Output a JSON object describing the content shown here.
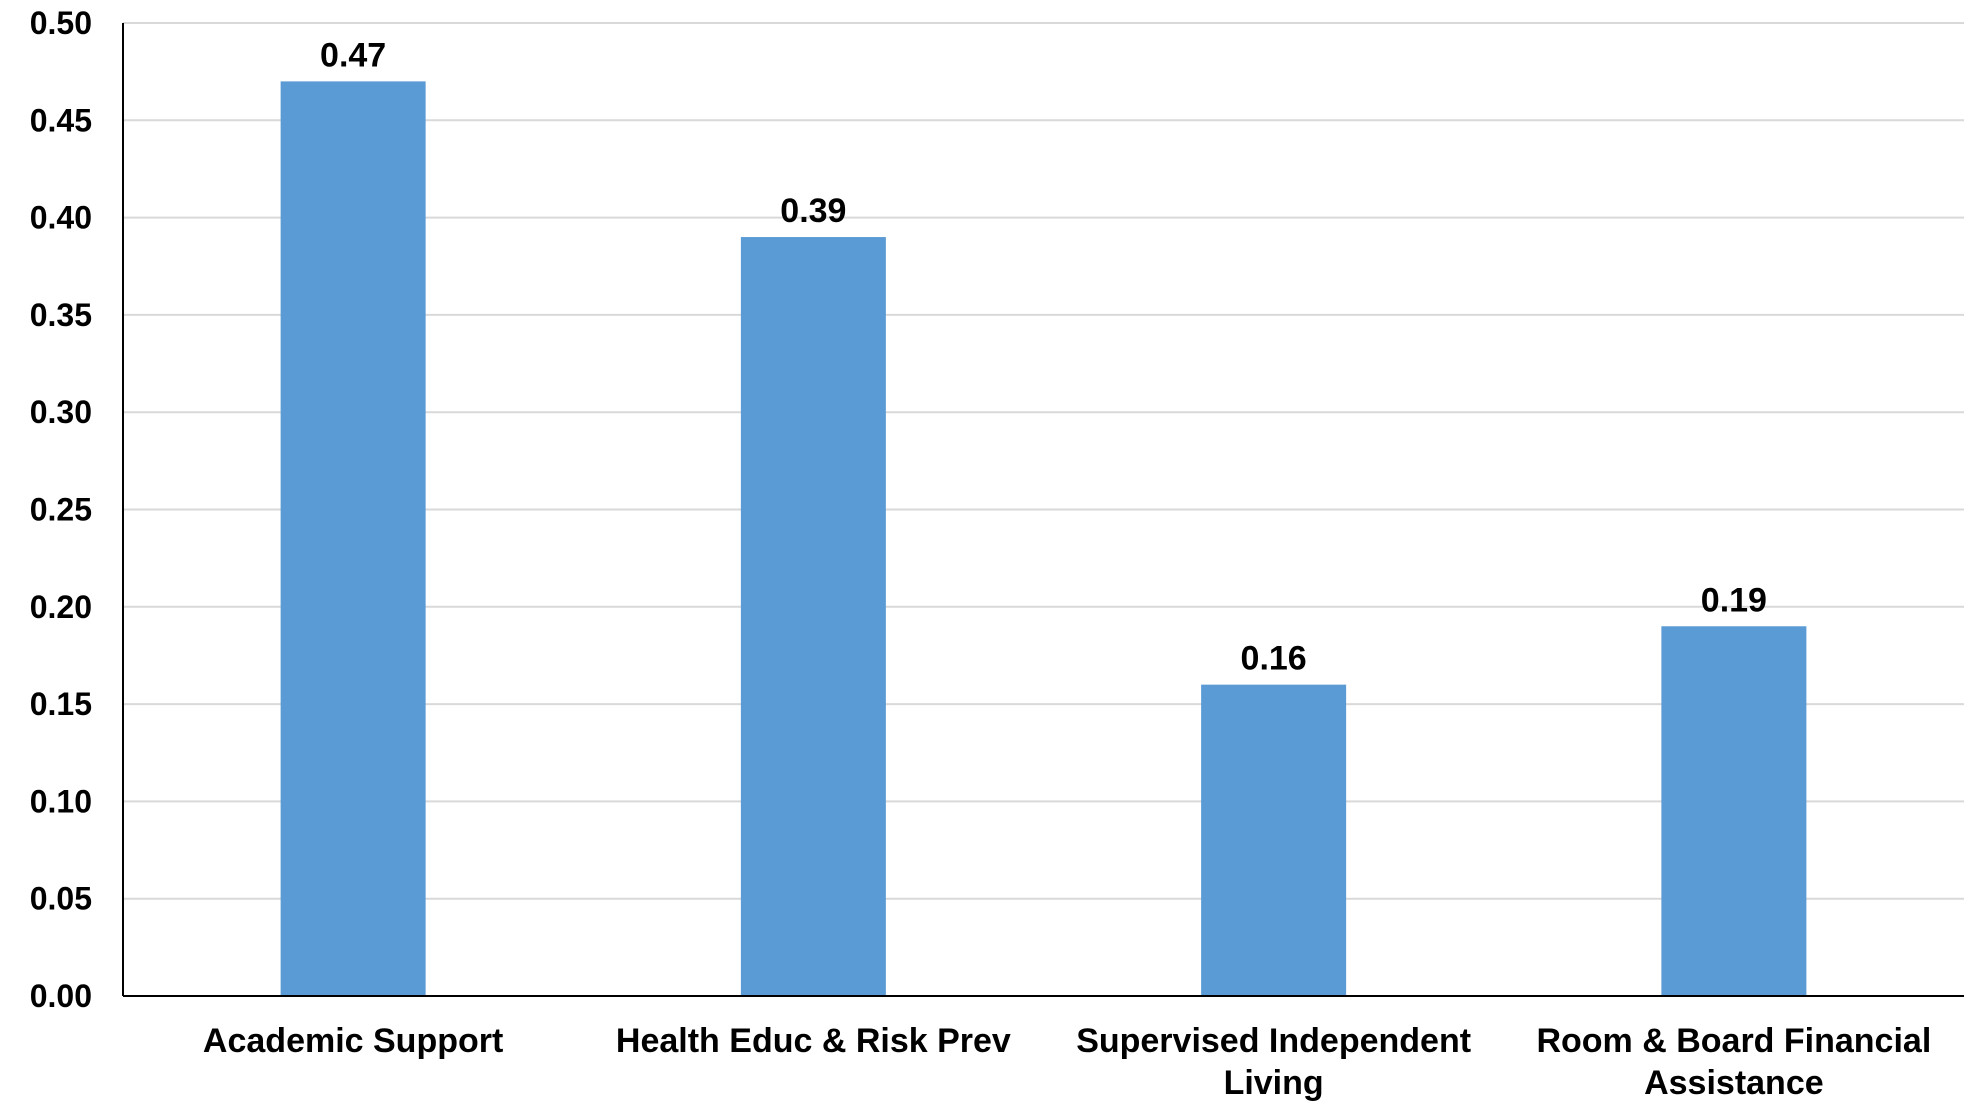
{
  "chart_data": {
    "type": "bar",
    "categories": [
      [
        "Academic Support"
      ],
      [
        "Health Educ & Risk Prev"
      ],
      [
        "Supervised Independent",
        "Living"
      ],
      [
        "Room & Board Financial",
        "Assistance"
      ]
    ],
    "values": [
      0.47,
      0.39,
      0.16,
      0.19
    ],
    "data_labels": [
      "0.47",
      "0.39",
      "0.16",
      "0.19"
    ],
    "yticks": [
      0.0,
      0.05,
      0.1,
      0.15,
      0.2,
      0.25,
      0.3,
      0.35,
      0.4,
      0.45,
      0.5
    ],
    "ytick_labels": [
      "0.00",
      "0.05",
      "0.10",
      "0.15",
      "0.20",
      "0.25",
      "0.30",
      "0.35",
      "0.40",
      "0.45",
      "0.50"
    ],
    "ylim": [
      0,
      0.5
    ],
    "title": "",
    "xlabel": "",
    "ylabel": "",
    "grid": true,
    "legend": "none",
    "bar_color": "#5b9bd5",
    "grid_color": "#d9d9d9",
    "axis_color": "#000000"
  }
}
